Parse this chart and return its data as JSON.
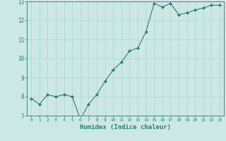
{
  "xlabel": "Humidex (Indice chaleur)",
  "x": [
    0,
    1,
    2,
    3,
    4,
    5,
    6,
    7,
    8,
    9,
    10,
    11,
    12,
    13,
    14,
    15,
    16,
    17,
    18,
    19,
    20,
    21,
    22,
    23
  ],
  "y": [
    7.9,
    7.6,
    8.1,
    8.0,
    8.1,
    8.0,
    6.8,
    7.6,
    8.1,
    8.8,
    9.4,
    9.8,
    10.4,
    10.55,
    11.4,
    12.9,
    12.7,
    12.9,
    12.3,
    12.4,
    12.55,
    12.65,
    12.8,
    12.8
  ],
  "ylim": [
    7,
    13
  ],
  "yticks": [
    7,
    8,
    9,
    10,
    11,
    12,
    13
  ],
  "xticks": [
    0,
    1,
    2,
    3,
    4,
    5,
    6,
    7,
    8,
    9,
    10,
    11,
    12,
    13,
    14,
    15,
    16,
    17,
    18,
    19,
    20,
    21,
    22,
    23
  ],
  "line_color": "#2e7d6e",
  "marker_color": "#2e7d6e",
  "bg_color": "#cce8e5",
  "grid_color": "#aed4d0",
  "axis_color": "#2e7d6e",
  "label_color": "#2e7d6e",
  "tick_color": "#2e7d6e",
  "font_color": "#2e7d6e"
}
